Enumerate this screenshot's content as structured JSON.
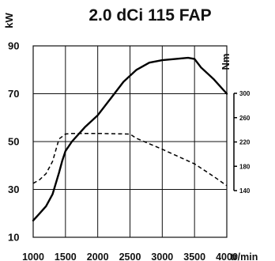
{
  "chart_data": {
    "type": "line",
    "title": "2.0 dCi 115 FAP",
    "left_axis_unit": "kW",
    "right_axis_unit": "Nm",
    "x_unit": "tr/min",
    "x_ticks": [
      1000,
      1500,
      2000,
      2500,
      3000,
      3500,
      4000
    ],
    "xlim": [
      1000,
      4000
    ],
    "y_ticks": [
      10,
      30,
      50,
      70,
      90
    ],
    "ylim": [
      10,
      90
    ],
    "y2_ticks": [
      140,
      180,
      220,
      260,
      300
    ],
    "y2lim": [
      135,
      300
    ],
    "grid": true,
    "series": [
      {
        "axis": "left",
        "style": "solid",
        "x": [
          1000,
          1100,
          1200,
          1300,
          1400,
          1450,
          1500,
          1600,
          1800,
          2000,
          2200,
          2400,
          2600,
          2800,
          3000,
          3200,
          3400,
          3500,
          3600,
          3800,
          4000
        ],
        "y": [
          17,
          20,
          23,
          28,
          37,
          42,
          46,
          50,
          56,
          61,
          68,
          75,
          80,
          83,
          84,
          84.5,
          85,
          84.5,
          81,
          76,
          70
        ]
      },
      {
        "axis": "right",
        "style": "dashed",
        "x": [
          1000,
          1100,
          1200,
          1300,
          1400,
          1500,
          1600,
          2000,
          2500,
          2600,
          3000,
          3500,
          3800,
          4000
        ],
        "y": [
          152,
          158,
          168,
          188,
          225,
          233,
          234,
          234,
          233,
          226,
          208,
          184,
          163,
          148
        ]
      }
    ]
  }
}
